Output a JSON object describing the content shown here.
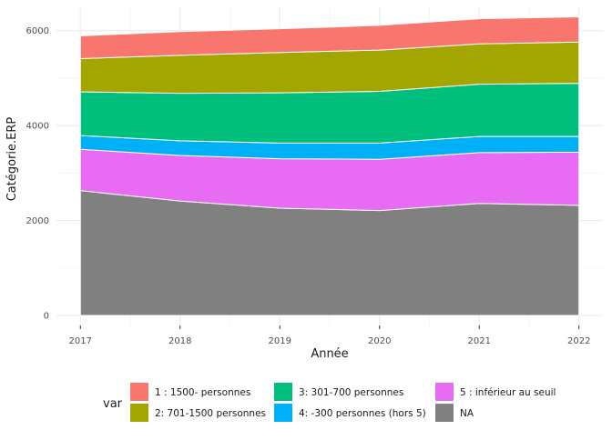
{
  "chart_data": {
    "type": "area",
    "stacked": true,
    "xlabel": "Année",
    "ylabel": "Catégorie.ERP",
    "x": [
      2017,
      2018,
      2019,
      2020,
      2021,
      2022
    ],
    "ylim": [
      0,
      6300
    ],
    "yticks": [
      0,
      2000,
      4000,
      6000
    ],
    "grid": true,
    "legend": {
      "title": "var",
      "placement": "bottom",
      "entries": [
        {
          "label": "1 : 1500- personnes",
          "color": "#F8766D"
        },
        {
          "label": "2: 701-1500 personnes",
          "color": "#A3A500"
        },
        {
          "label": "3: 301-700 personnes",
          "color": "#00BF7D"
        },
        {
          "label": "4: -300 personnes (hors 5)",
          "color": "#00B0F6"
        },
        {
          "label": "5 : inférieur au seuil",
          "color": "#E76BF3"
        },
        {
          "label": "NA",
          "color": "#808080"
        }
      ]
    },
    "series": [
      {
        "name": "1 : 1500- personnes",
        "color": "#F8766D",
        "values": [
          480,
          500,
          500,
          520,
          530,
          530
        ]
      },
      {
        "name": "2: 701-1500 personnes",
        "color": "#A3A500",
        "values": [
          700,
          800,
          850,
          870,
          850,
          870
        ]
      },
      {
        "name": "3: 301-700 personnes",
        "color": "#00BF7D",
        "values": [
          920,
          1000,
          1060,
          1090,
          1100,
          1120
        ]
      },
      {
        "name": "4: -300 personnes (hors 5)",
        "color": "#00B0F6",
        "values": [
          290,
          310,
          330,
          340,
          340,
          330
        ]
      },
      {
        "name": "5 : inférieur au seuil",
        "color": "#E76BF3",
        "values": [
          870,
          960,
          1040,
          1080,
          1070,
          1120
        ]
      },
      {
        "name": "NA",
        "color": "#808080",
        "values": [
          2630,
          2410,
          2260,
          2210,
          2360,
          2320
        ]
      }
    ]
  }
}
